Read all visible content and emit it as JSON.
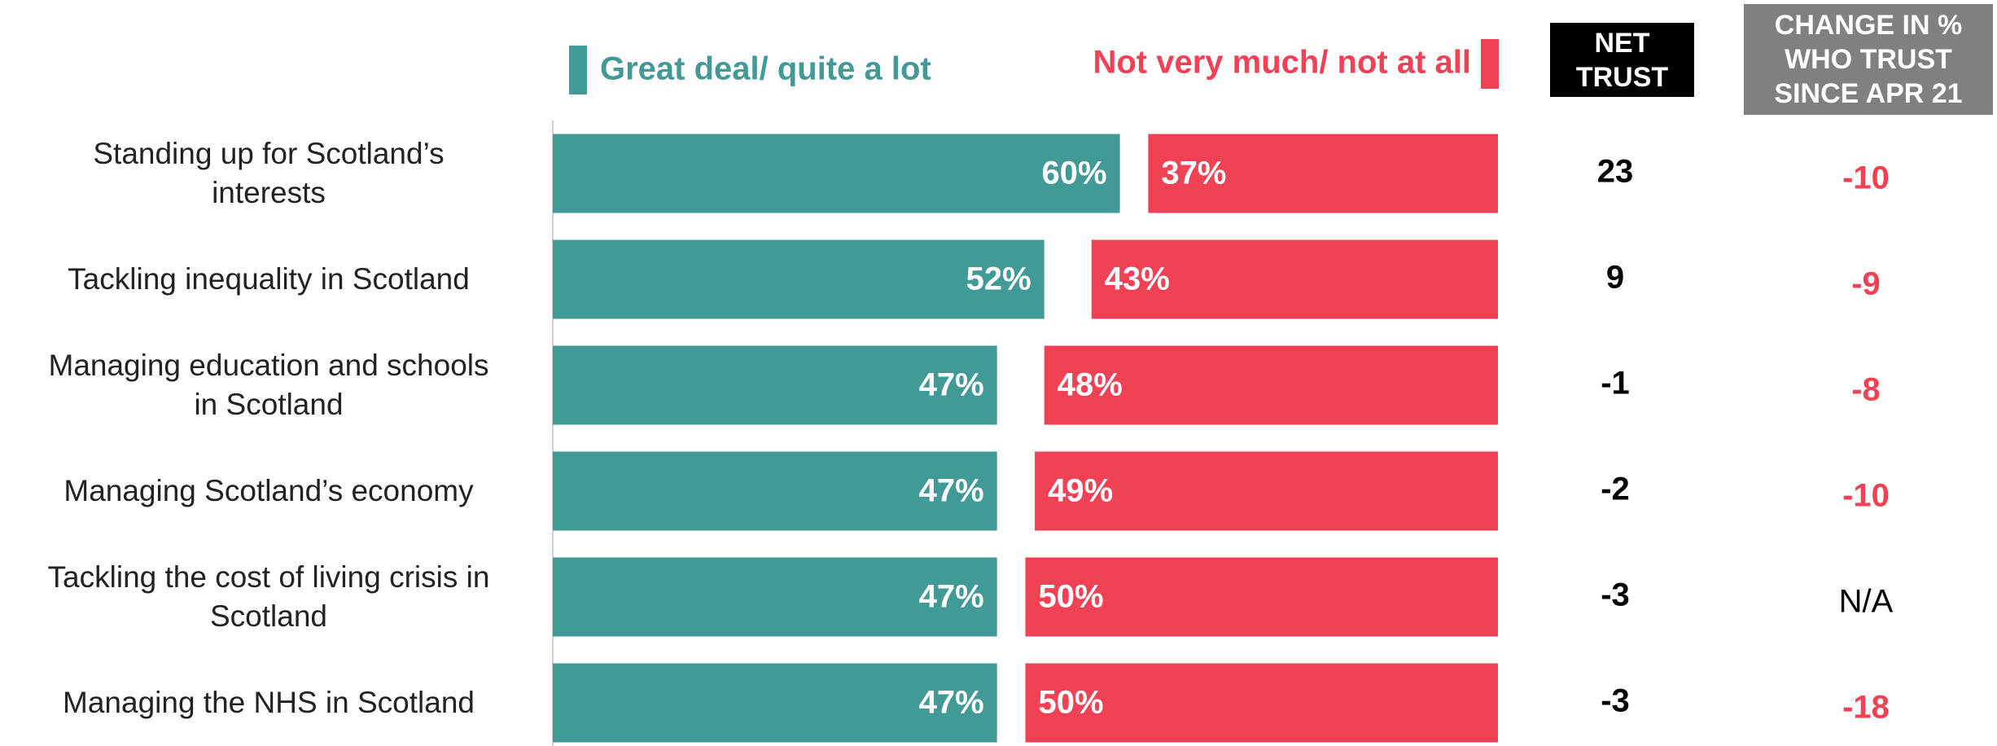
{
  "chart_data": {
    "type": "bar",
    "categories": [
      "Standing up for Scotland’s\ninterests",
      "Tackling inequality in Scotland",
      "Managing education and schools\nin Scotland",
      "Managing Scotland’s economy",
      "Tackling the cost of living crisis in\nScotland",
      "Managing the NHS in Scotland"
    ],
    "xlim": [
      0,
      100
    ],
    "series": [
      {
        "name": "Great deal/ quite a lot",
        "color": "#429a97",
        "anchor": "left",
        "values": [
          60,
          52,
          47,
          47,
          47,
          47
        ],
        "value_labels": [
          "60%",
          "52%",
          "47%",
          "47%",
          "47%",
          "47%"
        ]
      },
      {
        "name": "Not very much/ not at all",
        "color": "#f04155",
        "anchor": "right",
        "values": [
          37,
          43,
          48,
          49,
          50,
          50
        ],
        "value_labels": [
          "37%",
          "43%",
          "48%",
          "49%",
          "50%",
          "50%"
        ]
      }
    ],
    "columns": [
      {
        "title": "NET\nTRUST",
        "values": [
          23,
          9,
          -1,
          -2,
          -3,
          -3
        ]
      },
      {
        "title": "CHANGE IN %\nWHO TRUST\nSINCE APR 21",
        "values": [
          -10,
          -9,
          -8,
          -10,
          "N/A",
          -18
        ]
      }
    ]
  }
}
